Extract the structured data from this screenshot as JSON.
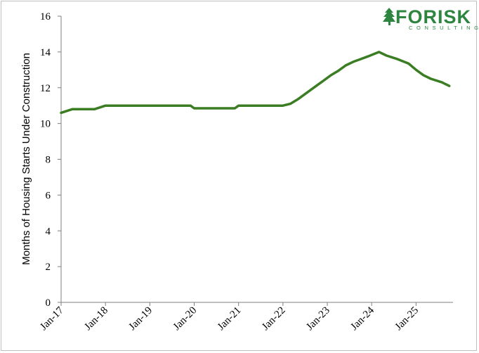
{
  "chart_data": {
    "type": "line",
    "title": "",
    "xlabel": "",
    "ylabel": "Months of Housing Starts Under Construction",
    "ylim": [
      0,
      16
    ],
    "yticks": [
      0,
      2,
      4,
      6,
      8,
      10,
      12,
      14,
      16
    ],
    "xticks": [
      "Jan-17",
      "Jan-18",
      "Jan-19",
      "Jan-20",
      "Jan-21",
      "Jan-22",
      "Jan-23",
      "Jan-24",
      "Jan-25"
    ],
    "grid": false,
    "legend": "none",
    "line_color": "#3a7d22",
    "series": [
      {
        "values": [
          {
            "x": "Jan-17",
            "y": 10.6
          },
          {
            "x": "Apr-17",
            "y": 10.8
          },
          {
            "x": "Oct-17",
            "y": 10.8
          },
          {
            "x": "Jan-18",
            "y": 11.0
          },
          {
            "x": "Jan-19",
            "y": 11.0
          },
          {
            "x": "Dec-19",
            "y": 11.0
          },
          {
            "x": "Jan-20",
            "y": 10.85
          },
          {
            "x": "Dec-20",
            "y": 10.85
          },
          {
            "x": "Jan-21",
            "y": 11.0
          },
          {
            "x": "Jan-22",
            "y": 11.0
          },
          {
            "x": "Mar-22",
            "y": 11.1
          },
          {
            "x": "May-22",
            "y": 11.35
          },
          {
            "x": "Aug-22",
            "y": 11.8
          },
          {
            "x": "Oct-22",
            "y": 12.1
          },
          {
            "x": "Dec-22",
            "y": 12.4
          },
          {
            "x": "Feb-23",
            "y": 12.7
          },
          {
            "x": "Apr-23",
            "y": 12.95
          },
          {
            "x": "Jun-23",
            "y": 13.25
          },
          {
            "x": "Aug-23",
            "y": 13.45
          },
          {
            "x": "Oct-23",
            "y": 13.6
          },
          {
            "x": "Dec-23",
            "y": 13.75
          },
          {
            "x": "Mar-24",
            "y": 14.0
          },
          {
            "x": "May-24",
            "y": 13.8
          },
          {
            "x": "Aug-24",
            "y": 13.6
          },
          {
            "x": "Nov-24",
            "y": 13.35
          },
          {
            "x": "Jan-25",
            "y": 13.0
          },
          {
            "x": "Mar-25",
            "y": 12.7
          },
          {
            "x": "May-25",
            "y": 12.5
          },
          {
            "x": "Aug-25",
            "y": 12.3
          },
          {
            "x": "Oct-25",
            "y": 12.1
          }
        ]
      }
    ]
  },
  "logo": {
    "name": "FORISK",
    "subtitle": "CONSULTING",
    "icon": "pine-tree-icon",
    "color": "#2e8540"
  }
}
